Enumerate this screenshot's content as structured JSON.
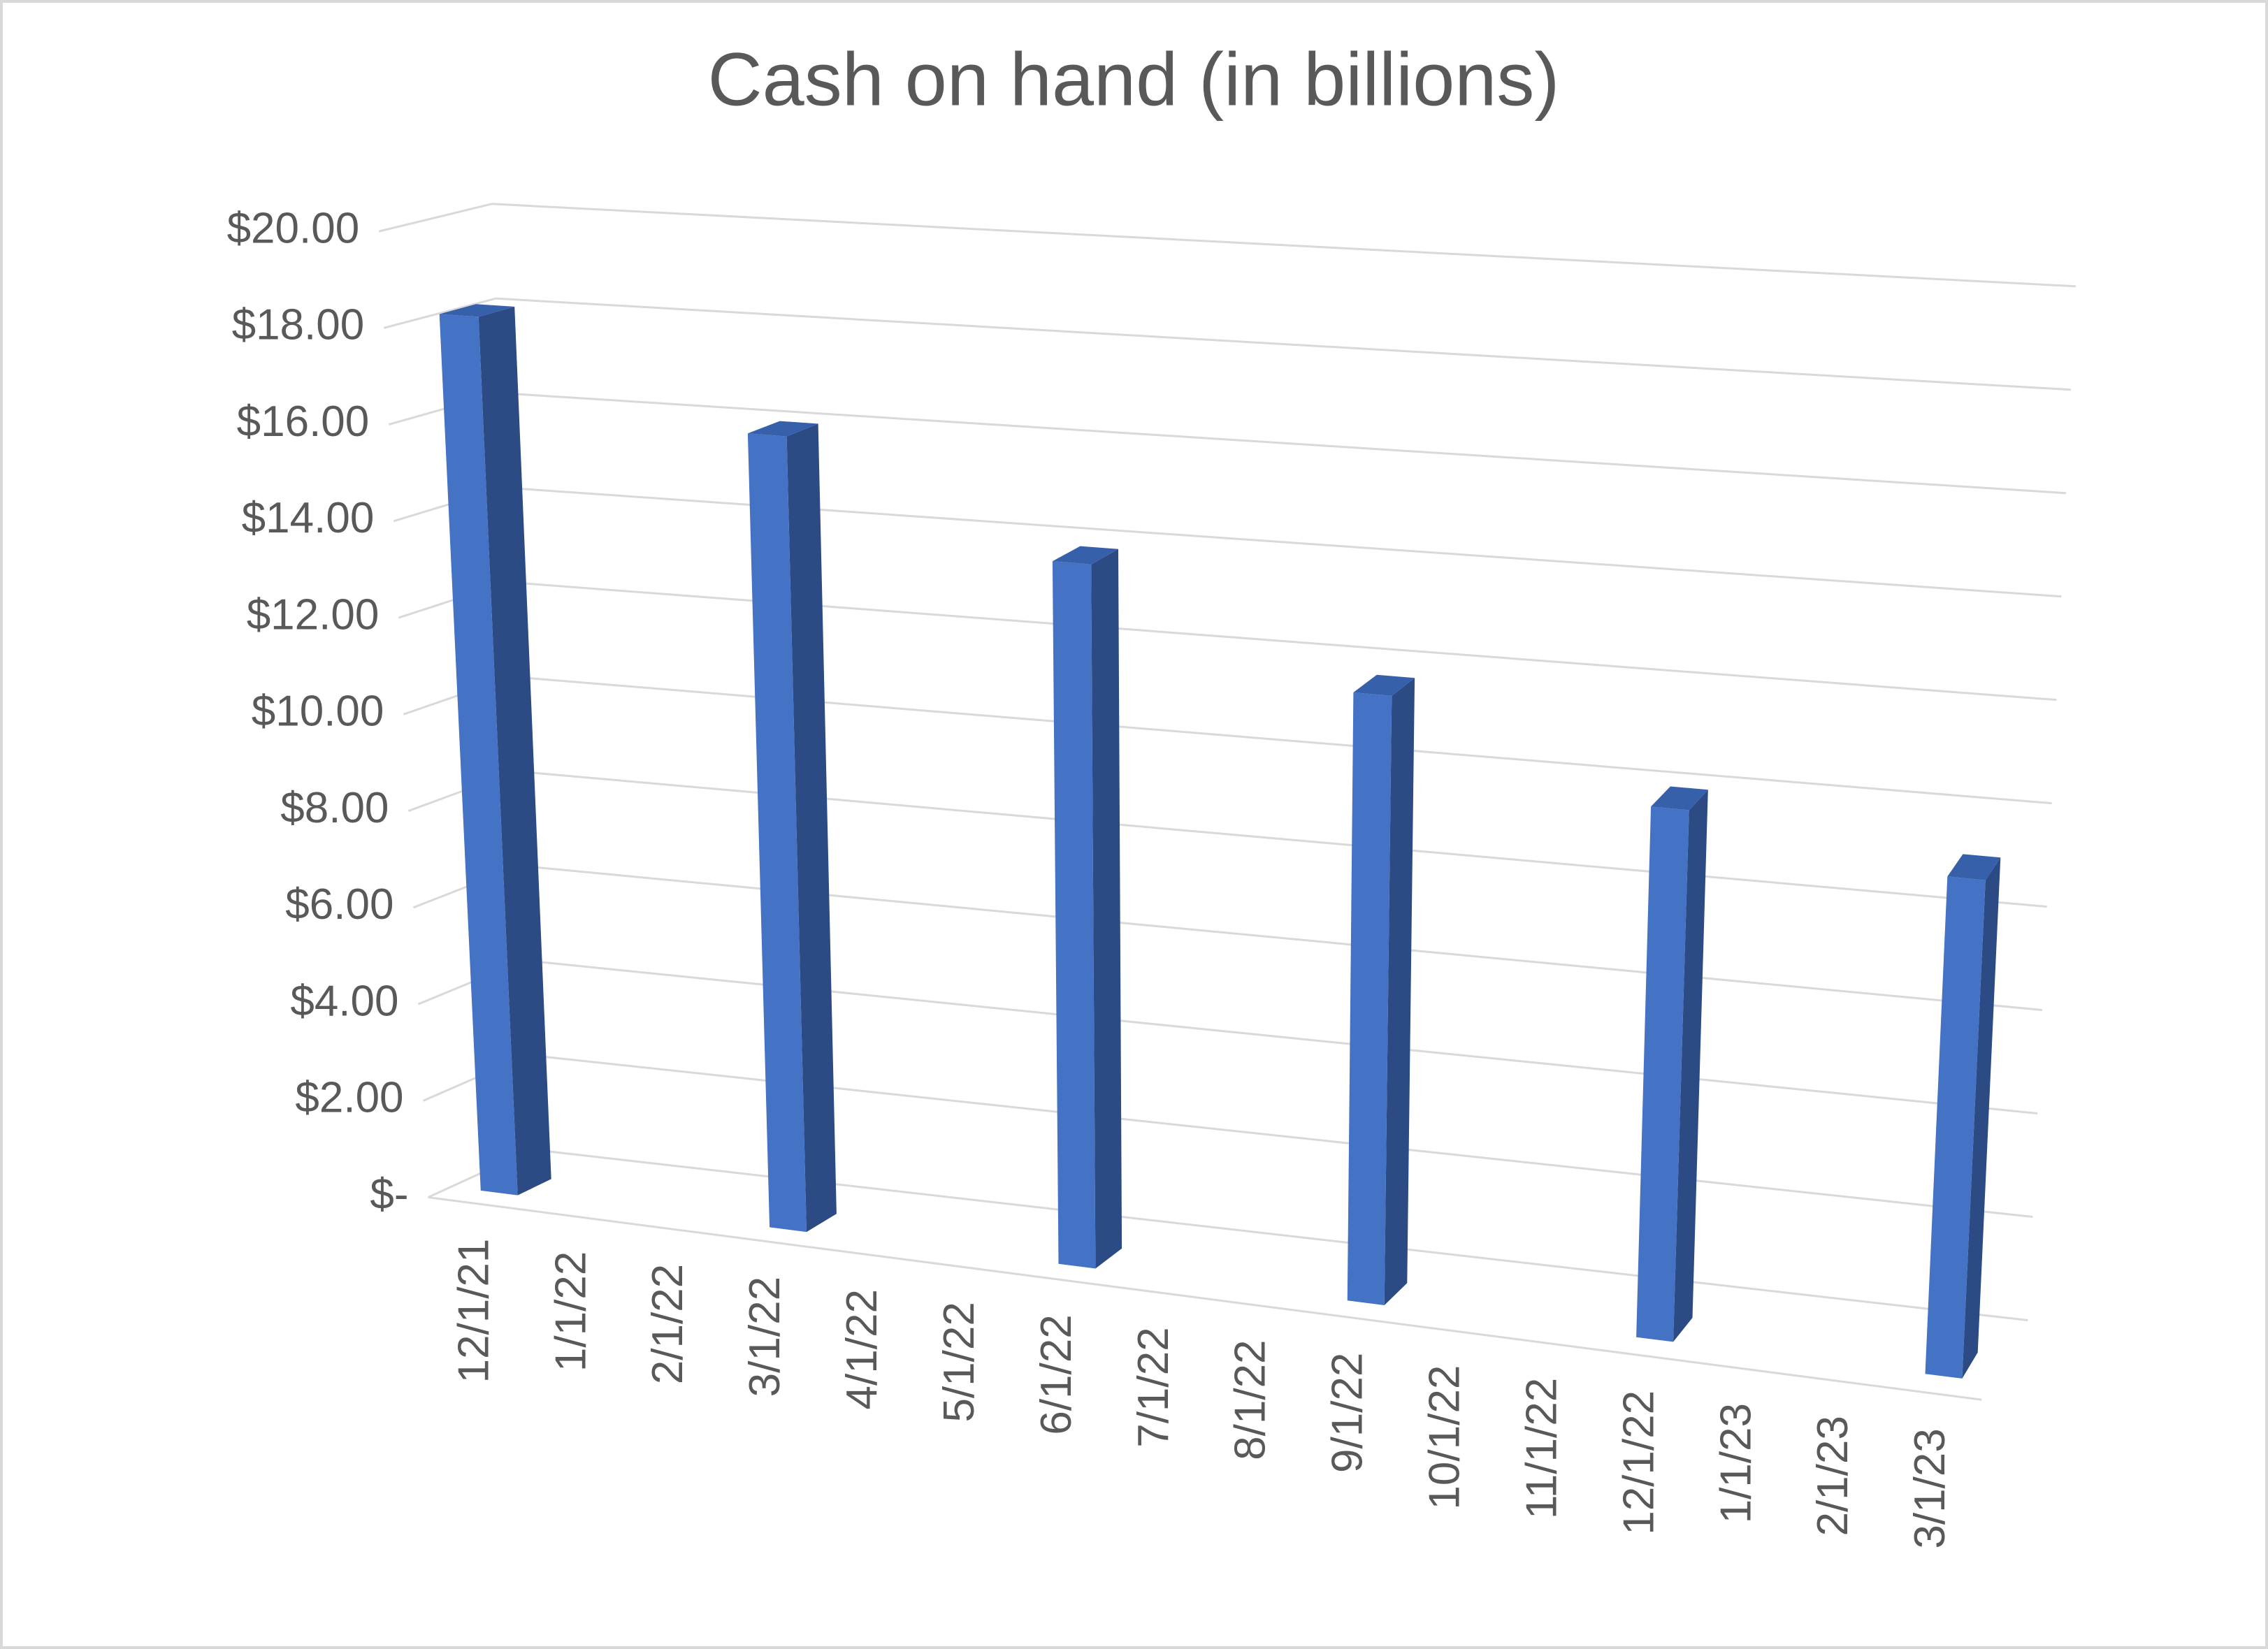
{
  "chart_data": {
    "type": "bar3d",
    "title": "Cash on hand (in billions)",
    "categories": [
      "12/1/21",
      "1/1/22",
      "2/1/22",
      "3/1/22",
      "4/1/22",
      "5/1/22",
      "6/1/22",
      "7/1/22",
      "8/1/22",
      "9/1/22",
      "10/1/22",
      "11/1/22",
      "12/1/22",
      "1/1/23",
      "2/1/23",
      "3/1/23"
    ],
    "values": [
      18.2,
      null,
      null,
      16.2,
      null,
      null,
      14.1,
      null,
      null,
      12.0,
      null,
      null,
      10.3,
      null,
      null,
      9.5
    ],
    "color": "#4472c4",
    "ylim": [
      0,
      20
    ],
    "yticks": [
      {
        "value": 0,
        "label": "$-"
      },
      {
        "value": 2,
        "label": "$2.00"
      },
      {
        "value": 4,
        "label": "$4.00"
      },
      {
        "value": 6,
        "label": "$6.00"
      },
      {
        "value": 8,
        "label": "$8.00"
      },
      {
        "value": 10,
        "label": "$10.00"
      },
      {
        "value": 12,
        "label": "$12.00"
      },
      {
        "value": 14,
        "label": "$14.00"
      },
      {
        "value": 16,
        "label": "$16.00"
      },
      {
        "value": 18,
        "label": "$18.00"
      },
      {
        "value": 20,
        "label": "$20.00"
      }
    ],
    "grid": true
  }
}
